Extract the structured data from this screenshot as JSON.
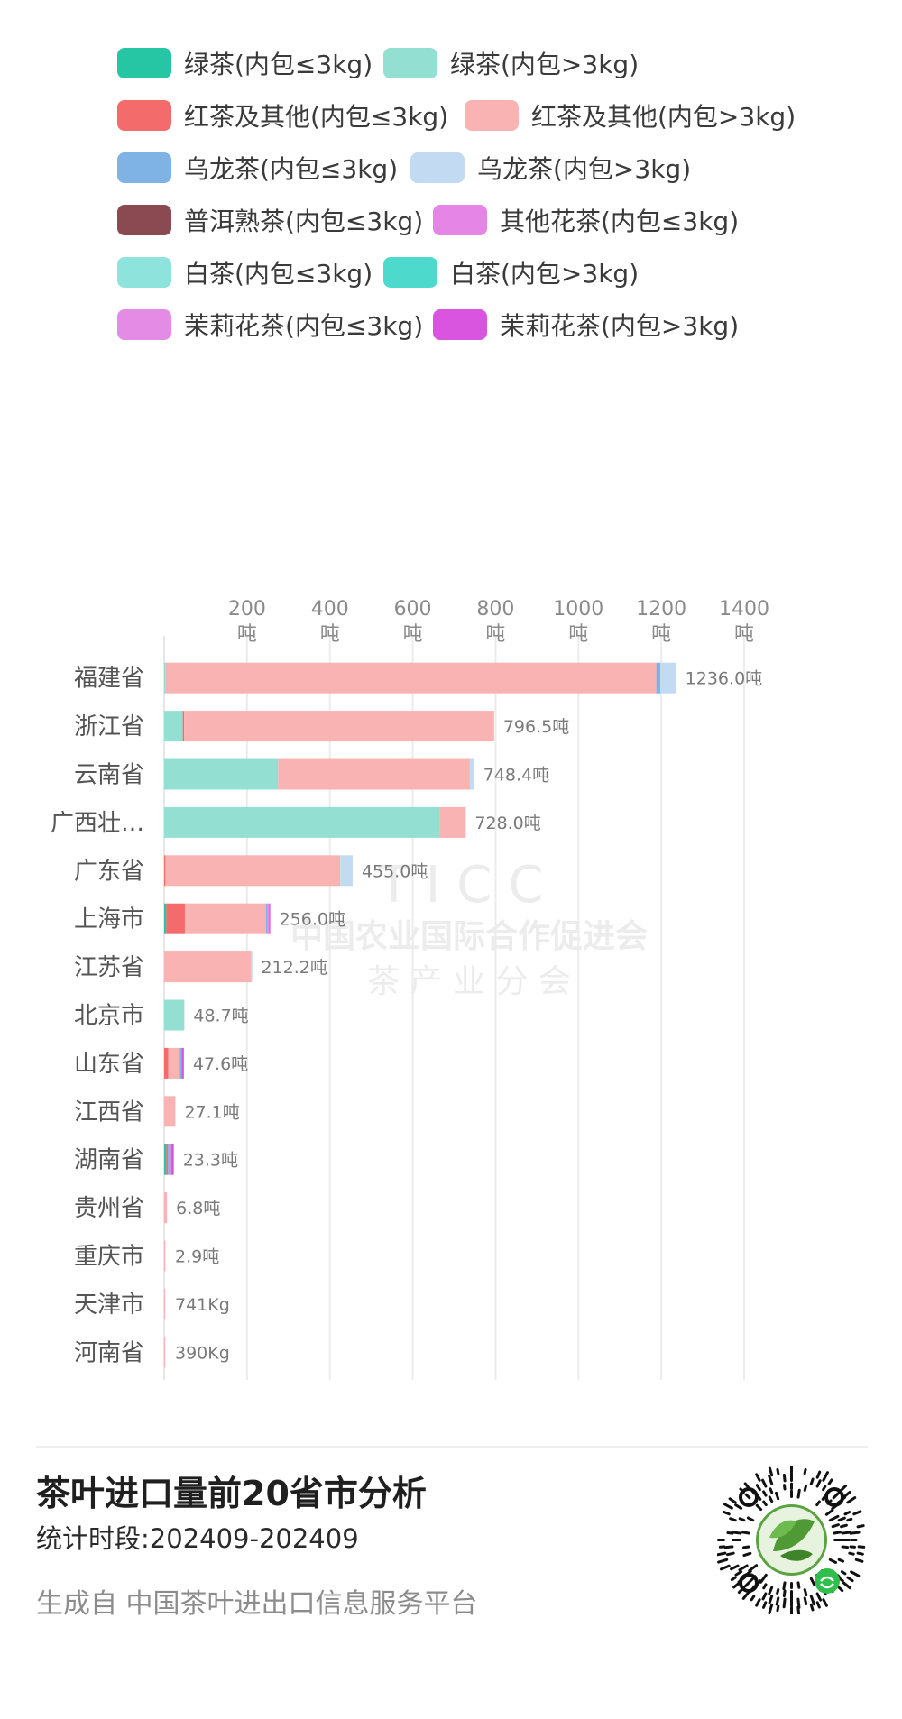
{
  "legend": [
    {
      "label": "绿茶(内包≤3kg)",
      "color": "#26c6a4"
    },
    {
      "label": "绿茶(内包>3kg)",
      "color": "#93e0d2"
    },
    {
      "label": "红茶及其他(内包≤3kg)",
      "color": "#f46b6b"
    },
    {
      "label": "红茶及其他(内包>3kg)",
      "color": "#f9b3b3"
    },
    {
      "label": "乌龙茶(内包≤3kg)",
      "color": "#7fb2e5"
    },
    {
      "label": "乌龙茶(内包>3kg)",
      "color": "#c2daf2"
    },
    {
      "label": "普洱熟茶(内包≤3kg)",
      "color": "#8b4a52"
    },
    {
      "label": "其他花茶(内包≤3kg)",
      "color": "#e586e6"
    },
    {
      "label": "白茶(内包≤3kg)",
      "color": "#8ee3dc"
    },
    {
      "label": "白茶(内包>3kg)",
      "color": "#4dd9cc"
    },
    {
      "label": "茉莉花茶(内包≤3kg)",
      "color": "#e48be6"
    },
    {
      "label": "茉莉花茶(内包>3kg)",
      "color": "#da55df"
    }
  ],
  "chart_data": {
    "type": "bar",
    "orientation": "horizontal",
    "stacked": true,
    "x_ticks": [
      "200\n吨",
      "400\n吨",
      "600\n吨",
      "800\n吨",
      "1000\n吨",
      "1200\n吨",
      "1400\n吨"
    ],
    "x_tick_values": [
      200,
      400,
      600,
      800,
      1000,
      1200,
      1400
    ],
    "xlim": [
      0,
      1400
    ],
    "categories": [
      "福建省",
      "浙江省",
      "云南省",
      "广西壮…",
      "广东省",
      "上海市",
      "江苏省",
      "北京市",
      "山东省",
      "江西省",
      "湖南省",
      "贵州省",
      "重庆市",
      "天津市",
      "河南省"
    ],
    "totals": [
      1236.0,
      796.5,
      748.4,
      728.0,
      455.0,
      256.0,
      212.2,
      48.7,
      47.6,
      27.1,
      23.3,
      6.8,
      2.9,
      0.741,
      0.39
    ],
    "total_labels": [
      "1236.0吨",
      "796.5吨",
      "748.4吨",
      "728.0吨",
      "455.0吨",
      "256.0吨",
      "212.2吨",
      "48.7吨",
      "47.6吨",
      "27.1吨",
      "23.3吨",
      "6.8吨",
      "2.9吨",
      "741Kg",
      "390Kg"
    ],
    "segments": [
      [
        {
          "series": 1,
          "value": 4
        },
        {
          "series": 3,
          "value": 1184
        },
        {
          "series": 4,
          "value": 10
        },
        {
          "series": 5,
          "value": 38
        }
      ],
      [
        {
          "series": 1,
          "value": 45
        },
        {
          "series": 2,
          "value": 3
        },
        {
          "series": 3,
          "value": 748.5
        }
      ],
      [
        {
          "series": 1,
          "value": 275
        },
        {
          "series": 3,
          "value": 463
        },
        {
          "series": 5,
          "value": 10.4
        }
      ],
      [
        {
          "series": 1,
          "value": 665
        },
        {
          "series": 3,
          "value": 63
        }
      ],
      [
        {
          "series": 2,
          "value": 3
        },
        {
          "series": 3,
          "value": 422
        },
        {
          "series": 5,
          "value": 30
        }
      ],
      [
        {
          "series": 0,
          "value": 5
        },
        {
          "series": 2,
          "value": 45
        },
        {
          "series": 3,
          "value": 196
        },
        {
          "series": 4,
          "value": 4
        },
        {
          "series": 10,
          "value": 3
        },
        {
          "series": 11,
          "value": 3
        }
      ],
      [
        {
          "series": 3,
          "value": 210
        },
        {
          "series": 5,
          "value": 2.2
        }
      ],
      [
        {
          "series": 1,
          "value": 48.7
        }
      ],
      [
        {
          "series": 2,
          "value": 10
        },
        {
          "series": 3,
          "value": 28
        },
        {
          "series": 4,
          "value": 4
        },
        {
          "series": 11,
          "value": 5.6
        }
      ],
      [
        {
          "series": 3,
          "value": 27.1
        }
      ],
      [
        {
          "series": 0,
          "value": 5
        },
        {
          "series": 2,
          "value": 4
        },
        {
          "series": 4,
          "value": 4
        },
        {
          "series": 7,
          "value": 4
        },
        {
          "series": 11,
          "value": 6.3
        }
      ],
      [
        {
          "series": 3,
          "value": 6.8
        }
      ],
      [
        {
          "series": 3,
          "value": 2.9
        }
      ],
      [
        {
          "series": 3,
          "value": 0.741
        }
      ],
      [
        {
          "series": 3,
          "value": 0.39
        }
      ]
    ],
    "grid": true,
    "legend_position": "top"
  },
  "watermark": {
    "logo": "TICC",
    "line1": "中国农业国际合作促进会",
    "line2": "茶 产 业 分 会"
  },
  "footer": {
    "title": "茶叶进口量前20省市分析",
    "period": "统计时段:202409-202409",
    "source": "生成自 中国茶叶进出口信息服务平台"
  }
}
